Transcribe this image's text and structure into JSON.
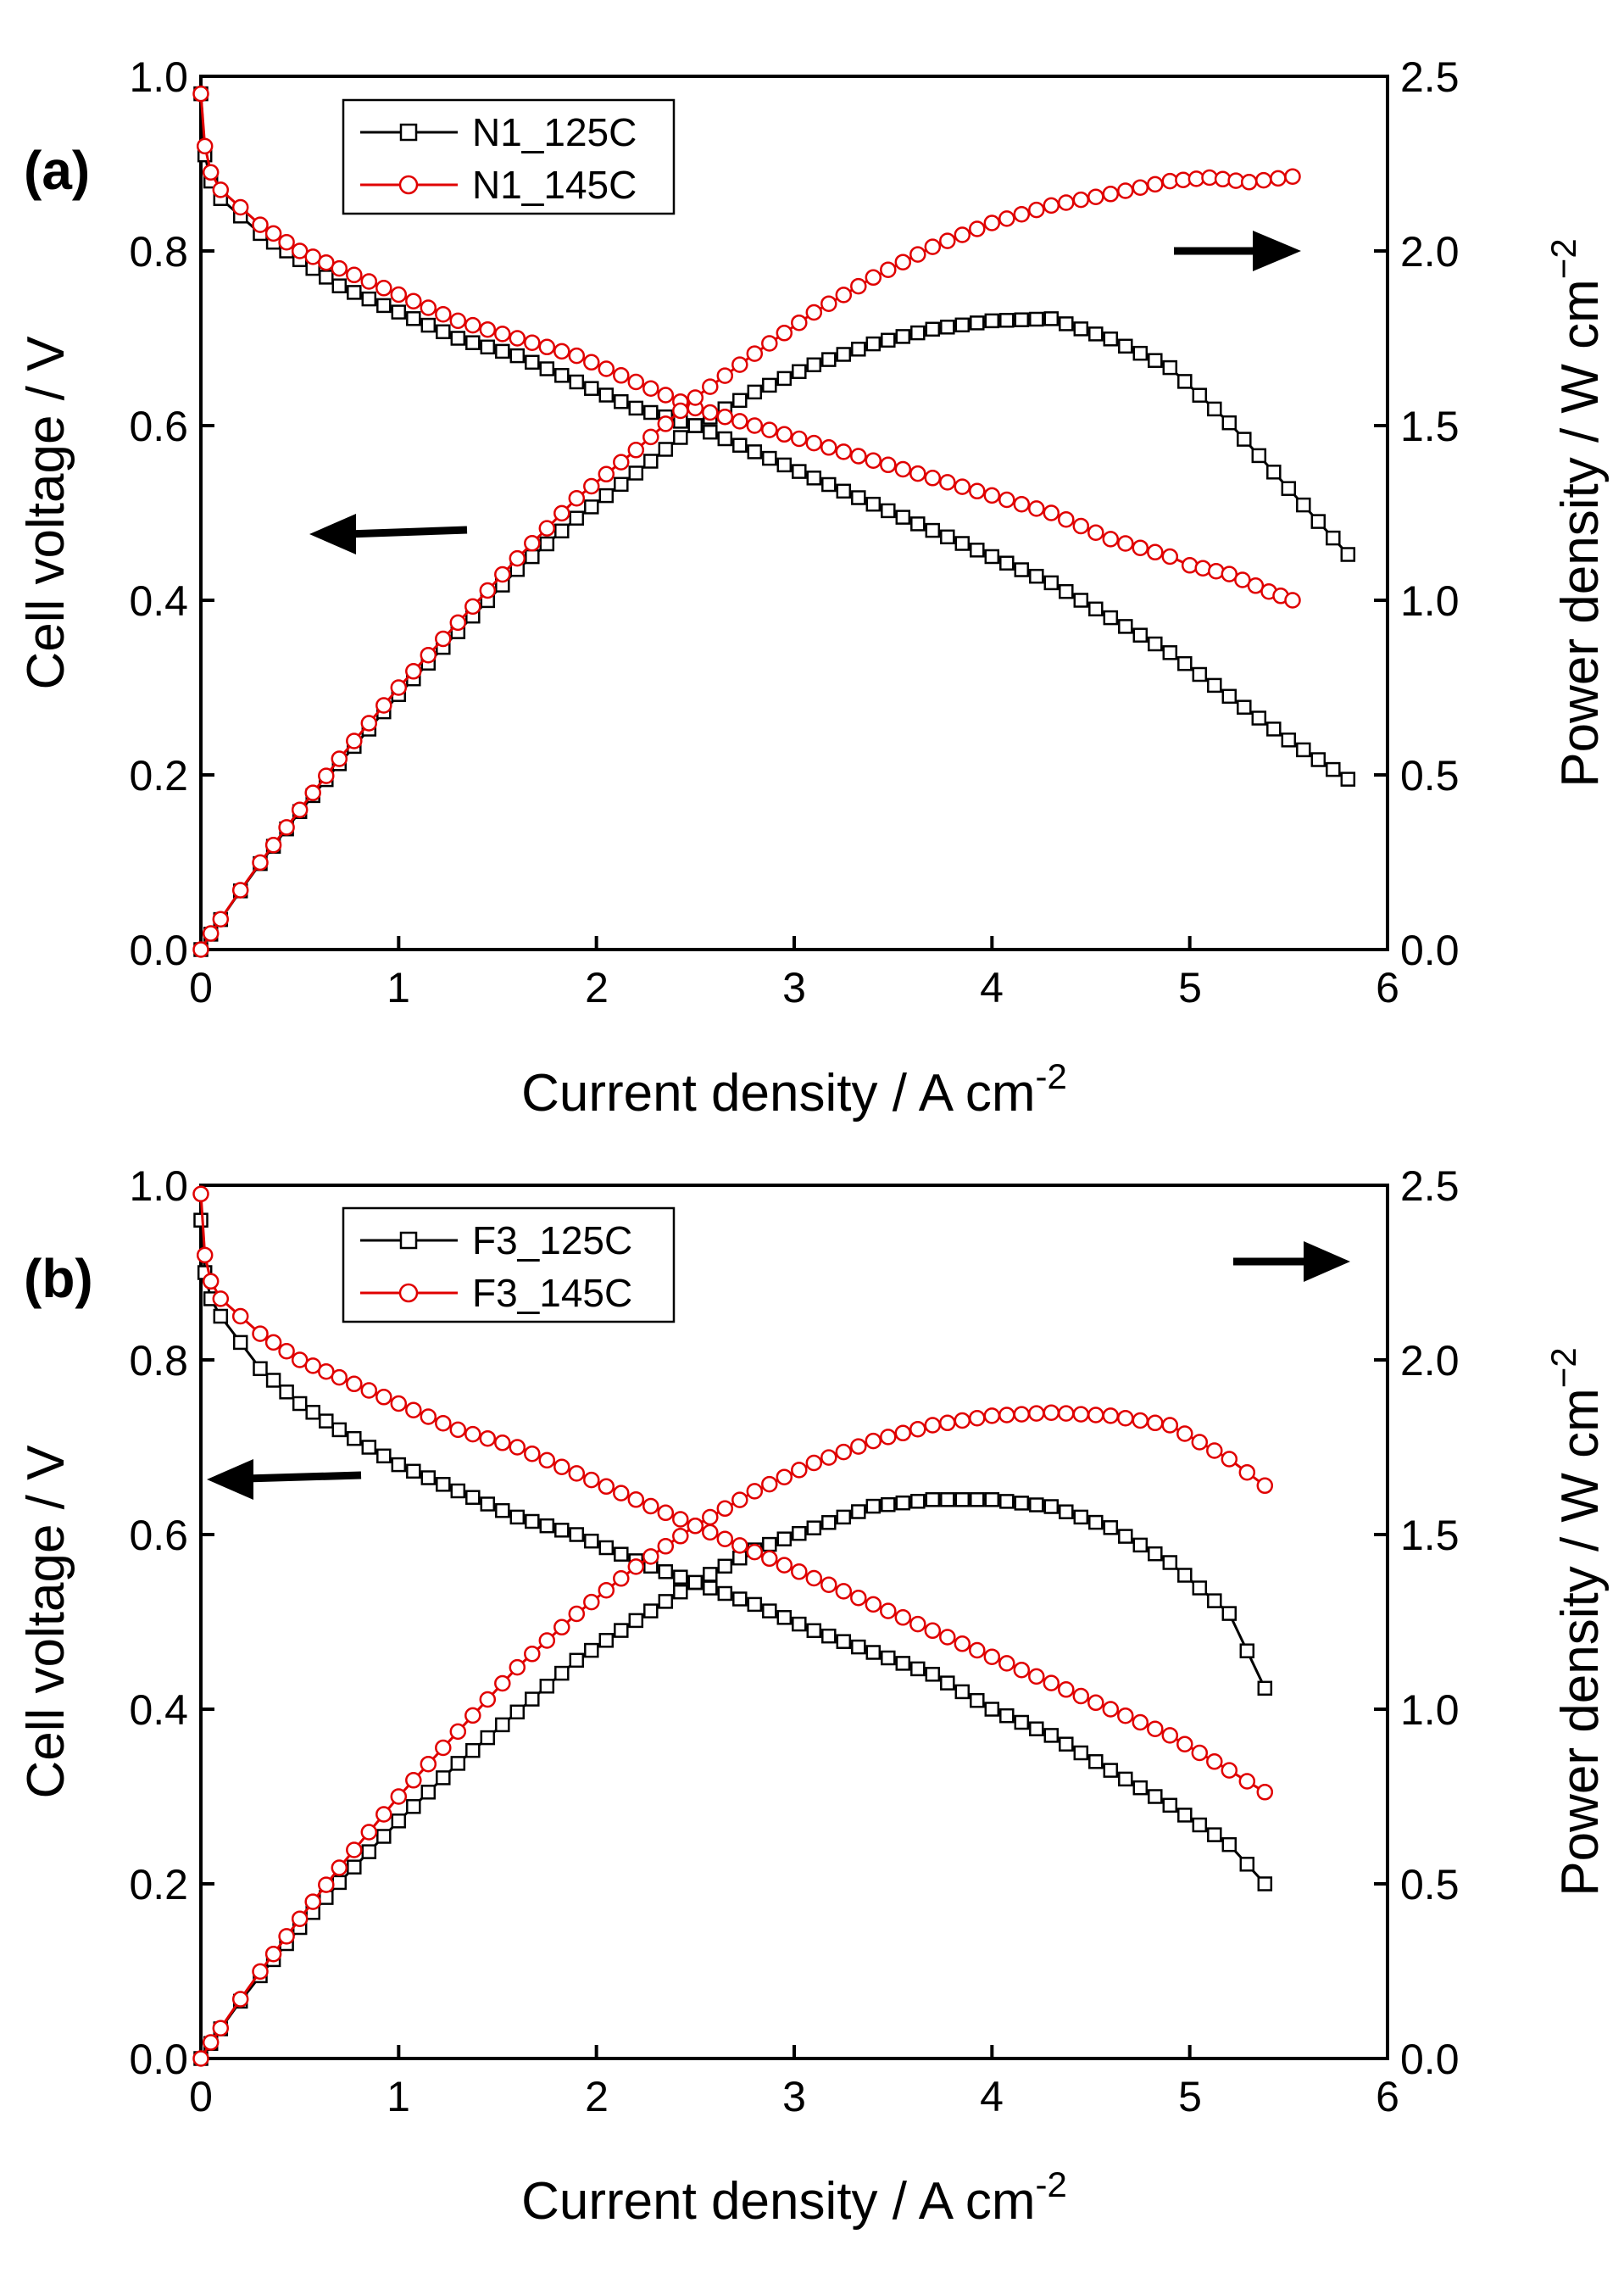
{
  "chart_data": [
    {
      "type": "line",
      "panel_label": "(a)",
      "xlabel": "Current density / A cm",
      "xlabel_sup": "-2",
      "ylabel": "Cell voltage / V",
      "y2label": "Power density / W cm",
      "y2label_sup": "−2",
      "xlim": [
        0,
        6
      ],
      "ylim": [
        0,
        1.0
      ],
      "y2lim": [
        0,
        2.5
      ],
      "x_ticks": [
        "0",
        "1",
        "2",
        "3",
        "4",
        "5",
        "6"
      ],
      "y_ticks": [
        "0.0",
        "0.2",
        "0.4",
        "0.6",
        "0.8",
        "1.0"
      ],
      "y2_ticks": [
        "0.0",
        "0.5",
        "1.0",
        "1.5",
        "2.0",
        "2.5"
      ],
      "legend": [
        "N1_125C",
        "N1_145C"
      ],
      "colors": {
        "series_125": "#000000",
        "series_145": "#e00000"
      },
      "series": [
        {
          "name": "N1_125C",
          "marker": "square",
          "polarization": {
            "x": [
              0.0,
              0.02,
              0.05,
              0.1,
              0.2,
              0.3,
              0.5,
              0.7,
              1.0,
              1.3,
              1.6,
              1.9,
              2.2,
              2.5,
              2.8,
              3.1,
              3.4,
              3.7,
              4.0,
              4.3,
              4.6,
              4.9,
              5.2,
              5.5,
              5.8
            ],
            "y": [
              0.98,
              0.91,
              0.88,
              0.86,
              0.84,
              0.82,
              0.79,
              0.76,
              0.73,
              0.7,
              0.68,
              0.65,
              0.62,
              0.6,
              0.57,
              0.54,
              0.51,
              0.48,
              0.45,
              0.42,
              0.38,
              0.34,
              0.29,
              0.24,
              0.195
            ]
          },
          "power": {
            "x": [
              0.0,
              0.05,
              0.1,
              0.2,
              0.3,
              0.5,
              0.7,
              1.0,
              1.3,
              1.6,
              1.9,
              2.2,
              2.5,
              2.8,
              3.1,
              3.4,
              3.7,
              4.0,
              4.3,
              4.6,
              4.9,
              5.2,
              5.5,
              5.8
            ],
            "y": [
              0.0,
              0.044,
              0.086,
              0.168,
              0.246,
              0.395,
              0.532,
              0.73,
              0.91,
              1.088,
              1.235,
              1.364,
              1.5,
              1.596,
              1.674,
              1.734,
              1.776,
              1.8,
              1.806,
              1.748,
              1.666,
              1.508,
              1.32,
              1.131
            ]
          }
        },
        {
          "name": "N1_145C",
          "marker": "circle",
          "polarization": {
            "x": [
              0.0,
              0.02,
              0.05,
              0.1,
              0.2,
              0.3,
              0.5,
              0.7,
              1.0,
              1.3,
              1.6,
              1.9,
              2.2,
              2.5,
              2.8,
              3.1,
              3.4,
              3.7,
              4.0,
              4.3,
              4.6,
              4.9,
              5.0,
              5.2,
              5.4,
              5.52
            ],
            "y": [
              0.98,
              0.92,
              0.89,
              0.87,
              0.85,
              0.83,
              0.8,
              0.78,
              0.75,
              0.72,
              0.7,
              0.68,
              0.65,
              0.62,
              0.6,
              0.58,
              0.56,
              0.54,
              0.52,
              0.5,
              0.47,
              0.45,
              0.44,
              0.43,
              0.41,
              0.4
            ]
          },
          "power": {
            "x": [
              0.0,
              0.05,
              0.1,
              0.2,
              0.3,
              0.5,
              0.7,
              1.0,
              1.3,
              1.6,
              1.9,
              2.2,
              2.5,
              2.8,
              3.1,
              3.4,
              3.7,
              4.0,
              4.3,
              4.6,
              4.9,
              5.1,
              5.3,
              5.52
            ],
            "y": [
              0.0,
              0.046,
              0.087,
              0.17,
              0.249,
              0.4,
              0.546,
              0.75,
              0.936,
              1.12,
              1.292,
              1.43,
              1.58,
              1.706,
              1.824,
              1.924,
              2.012,
              2.08,
              2.13,
              2.163,
              2.2,
              2.21,
              2.197,
              2.213
            ]
          }
        }
      ]
    },
    {
      "type": "line",
      "panel_label": "(b)",
      "xlabel": "Current density / A cm",
      "xlabel_sup": "-2",
      "ylabel": "Cell voltage / V",
      "y2label": "Power density / W cm",
      "y2label_sup": "−2",
      "xlim": [
        0,
        6
      ],
      "ylim": [
        0,
        1.0
      ],
      "y2lim": [
        0,
        2.5
      ],
      "x_ticks": [
        "0",
        "1",
        "2",
        "3",
        "4",
        "5",
        "6"
      ],
      "y_ticks": [
        "0.0",
        "0.2",
        "0.4",
        "0.6",
        "0.8",
        "1.0"
      ],
      "y2_ticks": [
        "0.0",
        "0.5",
        "1.0",
        "1.5",
        "2.0",
        "2.5"
      ],
      "legend": [
        "F3_125C",
        "F3_145C"
      ],
      "colors": {
        "series_125": "#000000",
        "series_145": "#e00000"
      },
      "series": [
        {
          "name": "F3_125C",
          "marker": "square",
          "polarization": {
            "x": [
              0.0,
              0.02,
              0.05,
              0.1,
              0.2,
              0.3,
              0.5,
              0.7,
              1.0,
              1.3,
              1.6,
              1.9,
              2.2,
              2.5,
              2.8,
              3.1,
              3.4,
              3.7,
              4.0,
              4.3,
              4.6,
              4.9,
              5.2,
              5.38
            ],
            "y": [
              0.96,
              0.9,
              0.87,
              0.85,
              0.82,
              0.79,
              0.75,
              0.72,
              0.68,
              0.65,
              0.62,
              0.6,
              0.57,
              0.545,
              0.52,
              0.49,
              0.465,
              0.44,
              0.4,
              0.37,
              0.33,
              0.29,
              0.245,
              0.2
            ]
          },
          "power": {
            "x": [
              0.0,
              0.05,
              0.1,
              0.2,
              0.3,
              0.5,
              0.7,
              1.0,
              1.3,
              1.6,
              1.9,
              2.2,
              2.5,
              2.8,
              3.1,
              3.4,
              3.7,
              4.0,
              4.3,
              4.6,
              4.9,
              5.2,
              5.38
            ],
            "y": [
              0.0,
              0.043,
              0.085,
              0.164,
              0.237,
              0.375,
              0.504,
              0.68,
              0.845,
              0.992,
              1.14,
              1.254,
              1.363,
              1.456,
              1.519,
              1.581,
              1.6,
              1.6,
              1.58,
              1.52,
              1.42,
              1.274,
              1.06
            ]
          }
        },
        {
          "name": "F3_145C",
          "marker": "circle",
          "polarization": {
            "x": [
              0.0,
              0.02,
              0.05,
              0.1,
              0.2,
              0.3,
              0.5,
              0.7,
              1.0,
              1.3,
              1.6,
              1.9,
              2.2,
              2.5,
              2.8,
              3.1,
              3.4,
              3.7,
              4.0,
              4.3,
              4.6,
              4.9,
              5.2,
              5.38
            ],
            "y": [
              0.99,
              0.92,
              0.89,
              0.87,
              0.85,
              0.83,
              0.8,
              0.78,
              0.75,
              0.72,
              0.7,
              0.67,
              0.64,
              0.61,
              0.58,
              0.55,
              0.52,
              0.49,
              0.46,
              0.43,
              0.4,
              0.37,
              0.33,
              0.305
            ]
          },
          "power": {
            "x": [
              0.0,
              0.05,
              0.1,
              0.2,
              0.3,
              0.5,
              0.7,
              1.0,
              1.3,
              1.6,
              1.9,
              2.2,
              2.5,
              2.8,
              3.1,
              3.4,
              3.7,
              4.0,
              4.3,
              4.6,
              4.9,
              5.2,
              5.38
            ],
            "y": [
              0.0,
              0.046,
              0.087,
              0.17,
              0.249,
              0.4,
              0.546,
              0.75,
              0.936,
              1.12,
              1.273,
              1.408,
              1.525,
              1.624,
              1.705,
              1.768,
              1.813,
              1.84,
              1.849,
              1.84,
              1.813,
              1.716,
              1.64
            ]
          }
        }
      ]
    }
  ]
}
